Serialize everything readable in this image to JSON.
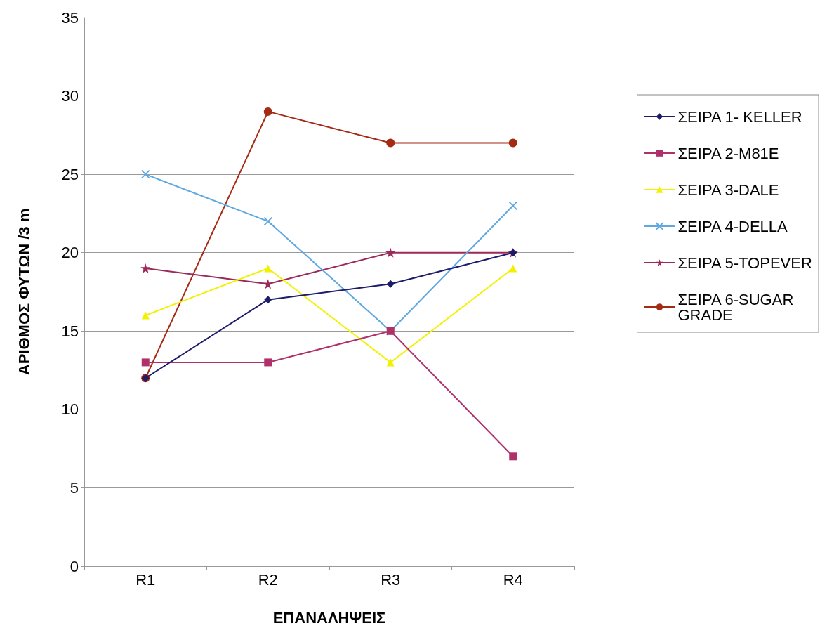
{
  "chart_data": {
    "type": "line",
    "xlabel": "ΕΠΑΝΑΛΗΨΕΙΣ",
    "ylabel": "ΑΡΙΘΜΟΣ ΦΥΤΩΝ /3 m",
    "categories": [
      "R1",
      "R2",
      "R3",
      "R4"
    ],
    "ylim": [
      0,
      35
    ],
    "yticks": [
      0,
      5,
      10,
      15,
      20,
      25,
      30,
      35
    ],
    "grid": "y",
    "legend": "right",
    "line_style": "solid",
    "series": [
      {
        "name": "ΣΕΙΡΑ 1- KELLER",
        "color": "#1c1c6b",
        "marker": "diamond",
        "values": [
          12,
          17,
          18,
          20
        ]
      },
      {
        "name": "ΣΕΙΡΑ 2-M81E",
        "color": "#b0306a",
        "marker": "square",
        "values": [
          13,
          13,
          15,
          7
        ]
      },
      {
        "name": "ΣΕΙΡΑ 3-DALE",
        "color": "#f2f200",
        "marker": "triangle",
        "values": [
          16,
          19,
          13,
          19
        ]
      },
      {
        "name": "ΣΕΙΡΑ 4-DELLA",
        "color": "#5fa8e0",
        "marker": "cross",
        "values": [
          25,
          22,
          15,
          23
        ]
      },
      {
        "name": "ΣΕΙΡΑ 5-TOPEVER",
        "color": "#9a2a5a",
        "marker": "star",
        "values": [
          19,
          18,
          20,
          20
        ]
      },
      {
        "name": "ΣΕΙΡΑ 6-SUGAR GRADE",
        "color": "#a52a14",
        "marker": "circle",
        "values": [
          12,
          29,
          27,
          27
        ]
      }
    ]
  }
}
